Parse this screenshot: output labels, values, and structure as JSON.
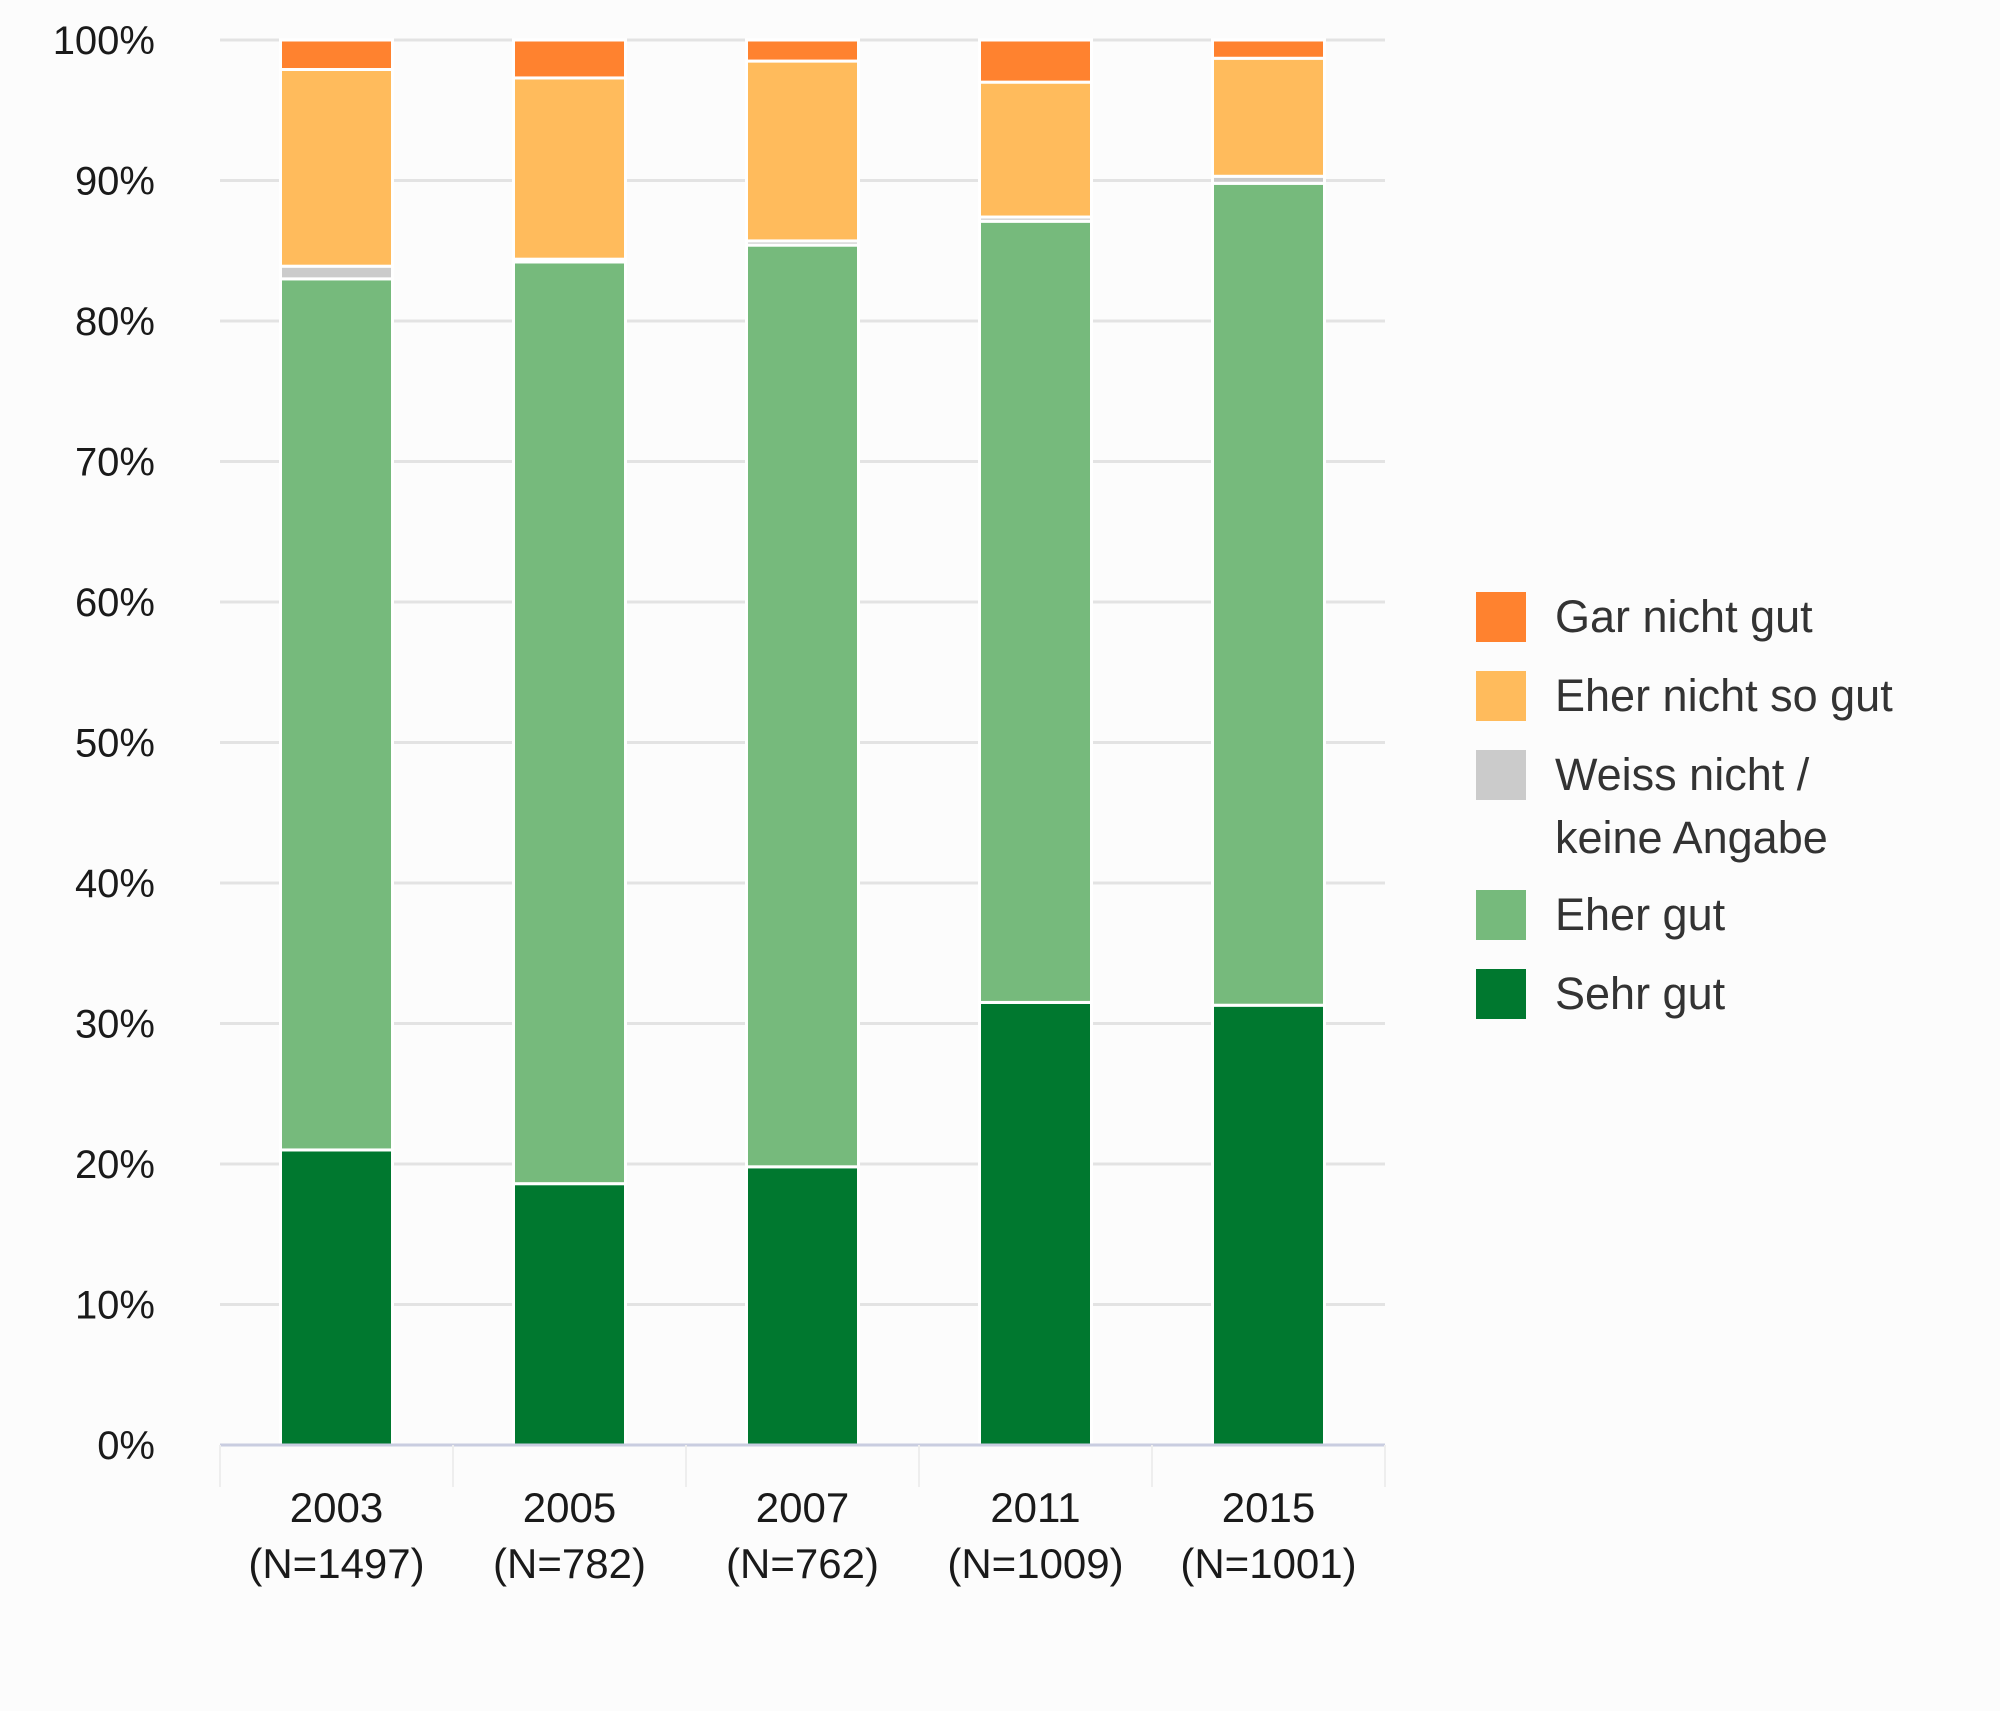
{
  "chart_data": {
    "type": "bar",
    "stacked": true,
    "categories": [
      "2003",
      "2005",
      "2007",
      "2011",
      "2015"
    ],
    "category_sublabels": [
      "(N=1497)",
      "(N=782)",
      "(N=762)",
      "(N=1009)",
      "(N=1001)"
    ],
    "ylim": [
      0,
      100
    ],
    "yticks": [
      "0%",
      "10%",
      "20%",
      "30%",
      "40%",
      "50%",
      "60%",
      "70%",
      "80%",
      "90%",
      "100%"
    ],
    "grid": true,
    "legend_position": "right",
    "legend": [
      "Gar nicht gut",
      "Eher nicht so gut",
      "Weiss nicht / keine Angabe",
      "Eher gut",
      "Sehr gut"
    ],
    "legend_lines": [
      [
        "Gar nicht gut"
      ],
      [
        "Eher nicht so gut"
      ],
      [
        "Weiss nicht /",
        "keine Angabe"
      ],
      [
        "Eher gut"
      ],
      [
        "Sehr gut"
      ]
    ],
    "series": [
      {
        "name": "Sehr gut",
        "color": "#00782f",
        "values": [
          21,
          18.6,
          19.8,
          31.5,
          31.3
        ]
      },
      {
        "name": "Eher gut",
        "color": "#76ba7c",
        "values": [
          62,
          65.6,
          65.6,
          55.6,
          58.5
        ]
      },
      {
        "name": "Weiss nicht / keine Angabe",
        "color": "#cbcbcb",
        "values": [
          0.9,
          0.2,
          0.3,
          0.3,
          0.5
        ]
      },
      {
        "name": "Eher nicht so gut",
        "color": "#ffbb5c",
        "values": [
          14,
          12.9,
          12.8,
          9.6,
          8.4
        ]
      },
      {
        "name": "Gar nicht gut",
        "color": "#ff822f",
        "values": [
          2.1,
          2.7,
          1.5,
          3,
          1.3
        ]
      }
    ]
  }
}
